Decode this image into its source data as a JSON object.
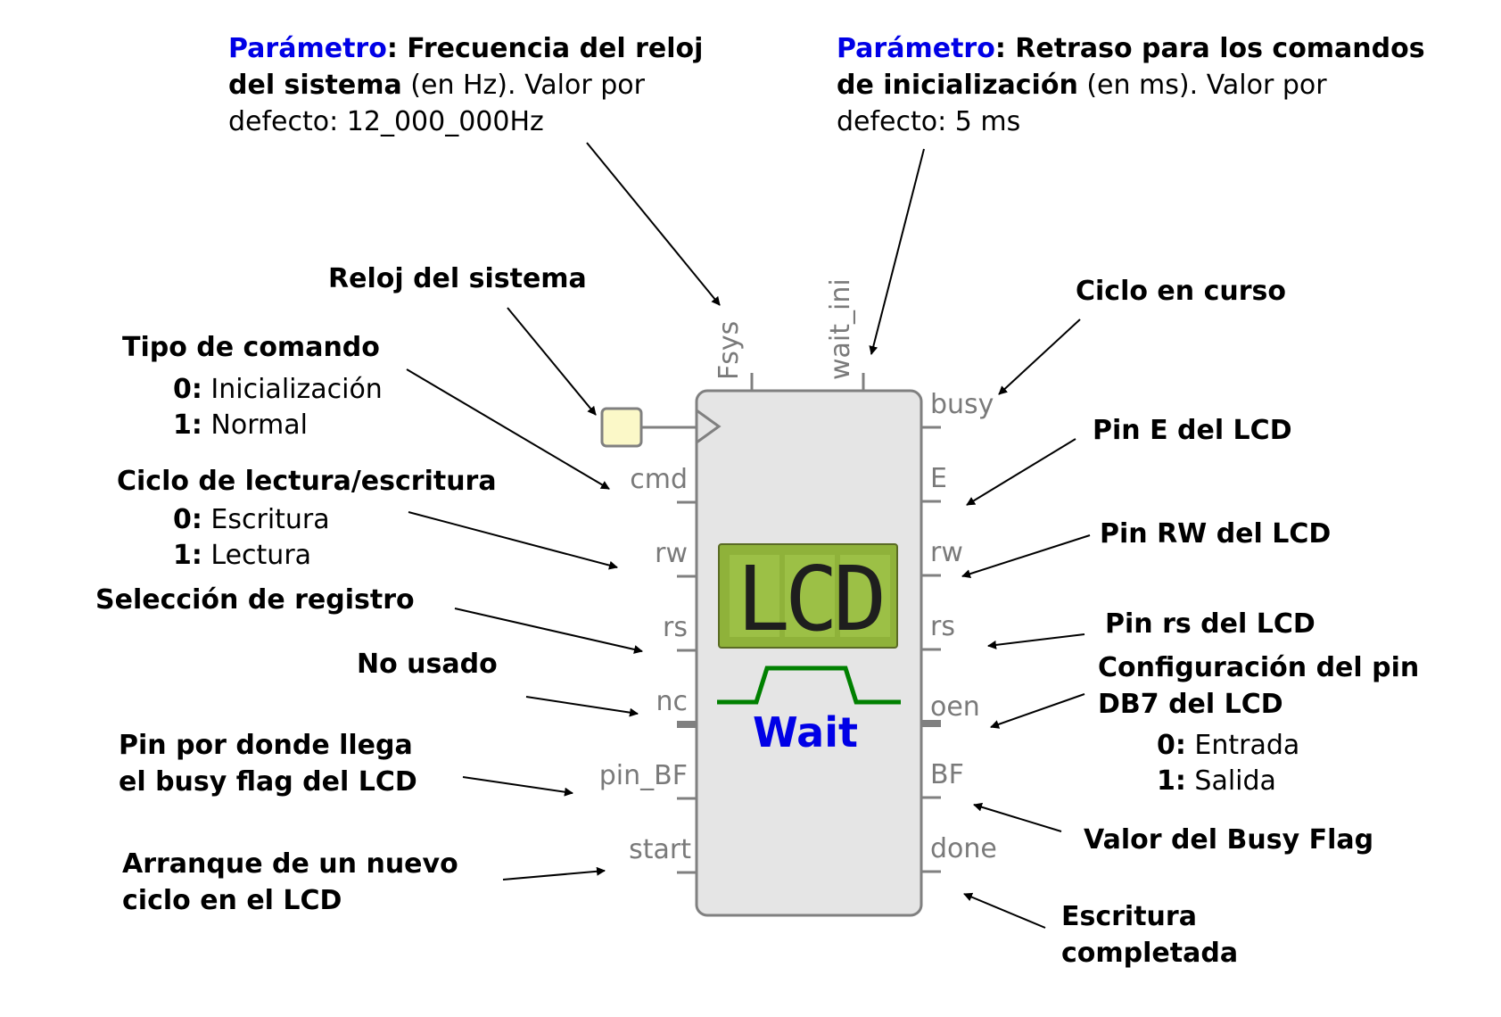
{
  "parameters": {
    "fsys": {
      "label": "Parámetro",
      "name": ": Frecuencia del reloj",
      "name2": "del sistema",
      "unit": " (en Hz). Valor por",
      "default": "defecto: 12_000_000Hz"
    },
    "wait_ini": {
      "label": "Parámetro",
      "name": ": Retraso para los comandos",
      "name2": "de inicialización",
      "unit": " (en ms). Valor por",
      "default": "defecto: 5 ms"
    }
  },
  "block": {
    "lcd_text": "LCD",
    "wait_text": "Wait",
    "top_ports": [
      "Fsys",
      "wait_ini"
    ],
    "left_ports": [
      "cmd",
      "rw",
      "rs",
      "nc",
      "pin_BF",
      "start"
    ],
    "right_ports": [
      "busy",
      "E",
      "rw",
      "rs",
      "oen",
      "BF",
      "done"
    ]
  },
  "left_annotations": {
    "clk": "Reloj del sistema",
    "cmd_title": "Tipo de comando",
    "cmd_opts": [
      {
        "key": "0:",
        "text": " Inicialización"
      },
      {
        "key": "1:",
        "text": " Normal"
      }
    ],
    "rw_title": "Ciclo de lectura/escritura",
    "rw_opts": [
      {
        "key": "0:",
        "text": " Escritura"
      },
      {
        "key": "1:",
        "text": " Lectura"
      }
    ],
    "rs": "Selección de registro",
    "nc": "No usado",
    "pin_bf_1": "Pin por donde llega",
    "pin_bf_2": "el busy flag del LCD",
    "start_1": "Arranque de un nuevo",
    "start_2": "ciclo en el LCD"
  },
  "right_annotations": {
    "busy": "Ciclo en curso",
    "e": "Pin E del LCD",
    "rw": "Pin RW del LCD",
    "rs": "Pin rs del LCD",
    "oen_1": "Configuración del pin",
    "oen_2": "DB7 del LCD",
    "oen_opts": [
      {
        "key": "0:",
        "text": " Entrada"
      },
      {
        "key": "1:",
        "text": " Salida"
      }
    ],
    "bf": "Valor del Busy Flag",
    "done_1": "Escritura",
    "done_2": "completada"
  },
  "colors": {
    "param_label": "#0000e6",
    "block_fill": "#e5e5e5",
    "block_stroke": "#808080",
    "lcd_screen": "#8fb23a",
    "wait_waveform": "#008000",
    "wait_text": "#0000e6",
    "clock_input": "#fbf8c8"
  }
}
